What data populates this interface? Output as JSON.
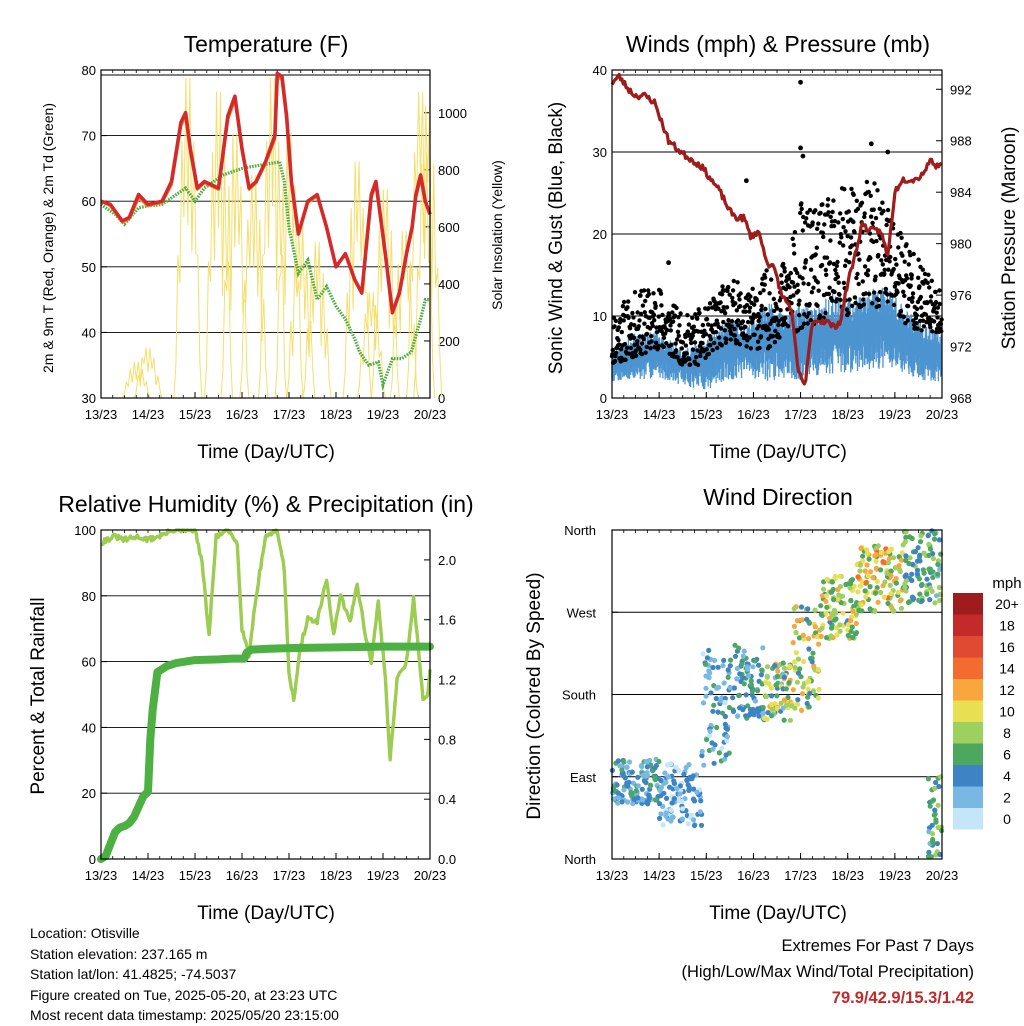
{
  "panels": {
    "temperature": {
      "title": "Temperature (F)",
      "xlabel": "Time (Day/UTC)",
      "ylabel_left": "2m & 9m T (Red, Orange) & 2m Td (Green)",
      "ylabel_right": "Solar Insolation (Yellow)"
    },
    "winds": {
      "title": "Winds (mph) & Pressure (mb)",
      "xlabel": "Time (Day/UTC)",
      "ylabel_left": "Sonic Wind & Gust (Blue, Black)",
      "ylabel_right": "Station Pressure (Maroon)"
    },
    "humidity": {
      "title": "Relative Humidity (%) & Precipitation (in)",
      "xlabel": "Time (Day/UTC)",
      "ylabel_left": "Percent & Total Rainfall",
      "ylabel_right": ""
    },
    "direction": {
      "title": "Wind Direction",
      "xlabel": "Time (Day/UTC)",
      "ylabel_left": "Direction (Colored By Speed)",
      "colorbar_unit": "mph"
    }
  },
  "info": {
    "location": "Location: Otisville",
    "elevation": "Station elevation: 237.165 m",
    "latlon": "Station lat/lon: 41.4825; -74.5037",
    "created": "Figure created on Tue, 2025-05-20, at 23:23 UTC",
    "recent": "Most recent data timestamp: 2025/05/20 23:15:00"
  },
  "extremes": {
    "title": "Extremes For Past 7 Days",
    "subtitle": "(High/Low/Max Wind/Total Precipitation)",
    "values": "79.9/42.9/15.3/1.42"
  },
  "colors": {
    "temp": "#d42a2a",
    "temp9m": "#f08a30",
    "dewpoint": "#4cad3f",
    "solar": "#f5df6c",
    "wind": "#4c94d0",
    "gust": "#000000",
    "pressure": "#9e1c1c",
    "rh": "#9ccc50",
    "rain": "#4cb043"
  },
  "chart_data": [
    {
      "type": "line",
      "title": "Temperature (F)",
      "xlabel": "Time (Day/UTC)",
      "ylabel": "2m & 9m T (Red, Orange) & 2m Td (Green)",
      "y2label": "Solar Insolation (Yellow)",
      "x_ticks": [
        "13/23",
        "14/23",
        "15/23",
        "16/23",
        "17/23",
        "18/23",
        "19/23",
        "20/23"
      ],
      "ylim": [
        30,
        80
      ],
      "yticks": [
        30,
        40,
        50,
        60,
        70,
        80
      ],
      "y2lim": [
        0,
        1150
      ],
      "y2ticks": [
        0,
        200,
        400,
        600,
        800,
        1000
      ],
      "series": [
        {
          "name": "2m T",
          "axis": "left",
          "color": "#d42a2a",
          "x": [
            0,
            0.2,
            0.45,
            0.6,
            0.8,
            1.0,
            1.3,
            1.5,
            1.7,
            1.8,
            1.9,
            2.05,
            2.2,
            2.5,
            2.7,
            2.85,
            3.0,
            3.15,
            3.3,
            3.5,
            3.7,
            3.75,
            3.85,
            3.95,
            4.05,
            4.2,
            4.4,
            4.6,
            4.8,
            5.0,
            5.2,
            5.4,
            5.55,
            5.75,
            5.85,
            6.05,
            6.2,
            6.35,
            6.5,
            6.62,
            6.7,
            6.8,
            6.9,
            7.0
          ],
          "y": [
            60,
            59.5,
            57,
            57.5,
            61,
            59.5,
            60,
            63,
            72,
            73.5,
            68,
            62,
            63,
            62,
            73,
            76,
            68,
            62,
            63,
            66,
            70,
            79.5,
            79,
            73,
            63,
            55,
            60,
            61,
            56,
            50,
            52,
            48,
            46,
            61,
            63,
            52,
            43,
            46,
            52,
            56,
            61,
            64,
            60,
            58
          ]
        },
        {
          "name": "9m T",
          "axis": "left",
          "color": "#f08a30",
          "x": [
            0,
            0.2,
            0.45,
            0.6,
            0.8,
            1.0,
            1.3,
            1.5,
            1.7,
            1.8,
            1.9,
            2.05,
            2.2,
            2.5,
            2.7,
            2.85,
            3.0,
            3.15,
            3.3,
            3.5,
            3.7,
            3.75,
            3.85,
            3.95,
            4.05,
            4.2,
            4.4,
            4.6,
            4.8,
            5.0,
            5.2,
            5.4,
            5.55,
            5.75,
            5.85,
            6.05,
            6.2,
            6.35,
            6.5,
            6.62,
            6.7,
            6.8,
            6.9,
            7.0
          ],
          "y": [
            60,
            59.3,
            56.8,
            57.3,
            60.5,
            59.3,
            59.8,
            62.5,
            71.5,
            73,
            67.5,
            61.8,
            62.8,
            61.8,
            72.5,
            75.5,
            67.8,
            61.8,
            62.8,
            65.8,
            69.5,
            79,
            78.5,
            72.5,
            62.8,
            55,
            59.8,
            60.8,
            56,
            50,
            52,
            48,
            46,
            60.5,
            62.5,
            52,
            43.2,
            46,
            52,
            56,
            60.5,
            63.5,
            60,
            58
          ]
        },
        {
          "name": "2m Td",
          "axis": "left",
          "color": "#4cad3f",
          "x": [
            0,
            0.3,
            0.5,
            0.8,
            1.0,
            1.3,
            1.6,
            1.8,
            2.0,
            2.2,
            2.6,
            3.0,
            3.4,
            3.8,
            3.9,
            4.0,
            4.2,
            4.4,
            4.6,
            4.8,
            5.0,
            5.2,
            5.4,
            5.5,
            5.7,
            5.9,
            6.0,
            6.2,
            6.4,
            6.6,
            6.8,
            6.9,
            7.0
          ],
          "y": [
            59.5,
            58,
            56.5,
            59,
            59.3,
            59.5,
            61,
            62,
            60,
            62,
            64,
            65,
            65.5,
            66,
            63,
            56,
            49,
            51,
            45,
            47,
            44,
            42,
            39,
            37,
            35,
            35.5,
            32,
            36,
            36,
            37,
            42,
            45,
            45
          ]
        },
        {
          "name": "Solar Insolation",
          "axis": "right",
          "color": "#f5df6c",
          "type": "diurnal",
          "peaks": [
            [
              0.75,
              130
            ],
            [
              1.0,
              180
            ],
            [
              1.85,
              1150
            ],
            [
              2.5,
              1100
            ],
            [
              2.85,
              950
            ],
            [
              3.25,
              800
            ],
            [
              3.65,
              1150
            ],
            [
              4.0,
              950
            ],
            [
              4.25,
              620
            ],
            [
              4.6,
              560
            ],
            [
              5.45,
              850
            ],
            [
              5.75,
              380
            ],
            [
              6.05,
              750
            ],
            [
              6.45,
              600
            ],
            [
              6.8,
              1100
            ],
            [
              6.95,
              1050
            ]
          ]
        }
      ]
    },
    {
      "type": "scatter",
      "title": "Winds (mph) & Pressure (mb)",
      "xlabel": "Time (Day/UTC)",
      "ylabel": "Sonic Wind & Gust (Blue, Black)",
      "y2label": "Station Pressure (Maroon)",
      "x_ticks": [
        "13/23",
        "14/23",
        "15/23",
        "16/23",
        "17/23",
        "18/23",
        "19/23",
        "20/23"
      ],
      "ylim": [
        0,
        40
      ],
      "yticks": [
        0,
        10,
        20,
        30,
        40
      ],
      "y2lim": [
        968,
        993.5
      ],
      "y2ticks": [
        968,
        972,
        976,
        980,
        984,
        988,
        992
      ],
      "series": [
        {
          "name": "Sonic Wind",
          "axis": "left",
          "color": "#4c94d0",
          "type": "band",
          "x": [
            0,
            0.5,
            1.0,
            1.5,
            1.9,
            2.0,
            2.5,
            2.9,
            3.3,
            3.7,
            4.0,
            4.3,
            4.7,
            5.0,
            5.4,
            5.8,
            6.2,
            6.6,
            7.0
          ],
          "low": [
            2,
            2,
            2.5,
            1.5,
            1,
            1,
            2,
            2.5,
            2,
            2.5,
            2,
            2.5,
            3,
            3,
            3.5,
            3.5,
            3,
            2,
            2
          ],
          "high": [
            6,
            8,
            8,
            6,
            7,
            7,
            10,
            9,
            12,
            10,
            12,
            11,
            13,
            12,
            13,
            14,
            11,
            9,
            8
          ]
        },
        {
          "name": "Gust",
          "axis": "left",
          "color": "#000000",
          "type": "scatter-cloud",
          "x": [
            0,
            0.5,
            1.0,
            1.5,
            1.9,
            2.0,
            2.5,
            2.9,
            3.3,
            3.7,
            4.0,
            4.3,
            4.7,
            5.0,
            5.4,
            5.8,
            6.2,
            6.6,
            7.0
          ],
          "low": [
            4,
            5,
            6,
            4,
            4,
            5,
            7,
            6,
            6,
            8,
            8,
            9,
            10,
            10,
            11,
            11,
            9,
            8,
            8
          ],
          "high": [
            11,
            13,
            14,
            10,
            11,
            11,
            15,
            13,
            16,
            17,
            24,
            23,
            25,
            26,
            27,
            25,
            21,
            16,
            13
          ],
          "outliers": [
            [
              2.85,
              26.5
            ],
            [
              4.0,
              38.5
            ],
            [
              4.0,
              30.5
            ],
            [
              4.05,
              29.5
            ],
            [
              5.5,
              31
            ],
            [
              5.85,
              30
            ],
            [
              1.2,
              16.5
            ],
            [
              0.6,
              12.5
            ]
          ]
        },
        {
          "name": "Station Pressure",
          "axis": "right",
          "color": "#9e1c1c",
          "x": [
            0,
            0.15,
            0.35,
            0.5,
            0.7,
            0.9,
            1.05,
            1.2,
            1.35,
            1.5,
            1.7,
            1.9,
            2.1,
            2.3,
            2.5,
            2.65,
            2.8,
            2.95,
            3.1,
            3.3,
            3.45,
            3.6,
            3.8,
            3.95,
            4.1,
            4.25,
            4.4,
            4.55,
            4.7,
            4.85,
            5.0,
            5.15,
            5.3,
            5.5,
            5.7,
            5.85,
            6.0,
            6.15,
            6.3,
            6.45,
            6.6,
            6.75,
            6.9,
            7.0
          ],
          "y": [
            992.5,
            993,
            992,
            991.5,
            991.5,
            991,
            989.5,
            988,
            987.5,
            987,
            986.5,
            986,
            985,
            984,
            982.5,
            982,
            982,
            980.5,
            981,
            978.5,
            978,
            976,
            975,
            970,
            969,
            974,
            974,
            974,
            973.5,
            974,
            977,
            979,
            981.5,
            981,
            981,
            979,
            984,
            985,
            985,
            985,
            985.5,
            986.5,
            986,
            986.5
          ]
        }
      ]
    },
    {
      "type": "line",
      "title": "Relative Humidity (%) & Precipitation (in)",
      "xlabel": "Time (Day/UTC)",
      "ylabel": "Percent & Total Rainfall",
      "x_ticks": [
        "13/23",
        "14/23",
        "15/23",
        "16/23",
        "17/23",
        "18/23",
        "19/23",
        "20/23"
      ],
      "ylim": [
        0,
        100
      ],
      "yticks": [
        0,
        20,
        40,
        60,
        80,
        100
      ],
      "y2lim": [
        0,
        2.2
      ],
      "y2ticks": [
        0.0,
        0.4,
        0.8,
        1.2,
        1.6,
        2.0
      ],
      "series": [
        {
          "name": "Relative Humidity",
          "axis": "left",
          "color": "#9ccc50",
          "x": [
            0,
            0.1,
            0.3,
            0.5,
            0.8,
            1.0,
            1.2,
            1.4,
            1.5,
            1.8,
            2.0,
            2.15,
            2.3,
            2.45,
            2.7,
            2.9,
            3.0,
            3.15,
            3.3,
            3.5,
            3.75,
            3.9,
            4.0,
            4.1,
            4.25,
            4.4,
            4.6,
            4.8,
            4.95,
            5.1,
            5.3,
            5.45,
            5.6,
            5.75,
            5.9,
            6.05,
            6.15,
            6.3,
            6.5,
            6.65,
            6.75,
            6.85,
            6.95,
            7.0
          ],
          "y": [
            96,
            97,
            98,
            97,
            98,
            97,
            98,
            99,
            100,
            100,
            100,
            90,
            68,
            98,
            100,
            96,
            70,
            62,
            80,
            98,
            100,
            88,
            57,
            48,
            65,
            73,
            72,
            85,
            68,
            80,
            72,
            84,
            70,
            60,
            78,
            55,
            30,
            55,
            60,
            79,
            65,
            48,
            50,
            57
          ]
        },
        {
          "name": "Total Rainfall",
          "axis": "right",
          "color": "#4cb043",
          "x": [
            0,
            0.1,
            0.2,
            0.3,
            0.4,
            0.5,
            0.6,
            0.7,
            0.8,
            0.9,
            1.0,
            1.05,
            1.1,
            1.2,
            1.4,
            1.6,
            2.0,
            2.5,
            2.8,
            3.05,
            3.1,
            3.2,
            3.5,
            4.0,
            5.0,
            6.0,
            7.0
          ],
          "y": [
            0.0,
            0.02,
            0.1,
            0.18,
            0.21,
            0.22,
            0.24,
            0.28,
            0.35,
            0.42,
            0.45,
            0.8,
            1.0,
            1.25,
            1.29,
            1.31,
            1.33,
            1.335,
            1.34,
            1.34,
            1.38,
            1.4,
            1.405,
            1.41,
            1.415,
            1.42,
            1.42
          ]
        }
      ]
    },
    {
      "type": "scatter",
      "title": "Wind Direction",
      "xlabel": "Time (Day/UTC)",
      "ylabel": "Direction (Colored By Speed)",
      "x_ticks": [
        "13/23",
        "14/23",
        "15/23",
        "16/23",
        "17/23",
        "18/23",
        "19/23",
        "20/23"
      ],
      "y_ticks": [
        "North",
        "East",
        "South",
        "West",
        "North"
      ],
      "ylim": [
        0,
        360
      ],
      "colorbar": {
        "unit": "mph",
        "labels": [
          "20+",
          "18",
          "16",
          "14",
          "12",
          "10",
          "8",
          "6",
          "4",
          "2",
          "0"
        ],
        "colors": [
          "#9e1c1c",
          "#c42a2a",
          "#e04a33",
          "#f36b2e",
          "#f8a63d",
          "#e8df52",
          "#9ed060",
          "#4ca85e",
          "#3e83c4",
          "#7ab8e4",
          "#c5e6f8"
        ]
      },
      "clusters": [
        {
          "x0": 0.0,
          "x1": 1.0,
          "dmin": 60,
          "dmax": 110,
          "smin": 1,
          "smax": 6
        },
        {
          "x0": 1.0,
          "x1": 1.9,
          "dmin": 35,
          "dmax": 105,
          "smin": 0,
          "smax": 5
        },
        {
          "x0": 1.9,
          "x1": 2.5,
          "dmin": 100,
          "dmax": 230,
          "smin": 0,
          "smax": 6
        },
        {
          "x0": 2.5,
          "x1": 3.2,
          "dmin": 150,
          "dmax": 235,
          "smin": 2,
          "smax": 7
        },
        {
          "x0": 3.2,
          "x1": 3.8,
          "dmin": 150,
          "dmax": 215,
          "smin": 2,
          "smax": 12
        },
        {
          "x0": 3.8,
          "x1": 4.4,
          "dmin": 160,
          "dmax": 280,
          "smin": 3,
          "smax": 13
        },
        {
          "x0": 4.4,
          "x1": 5.2,
          "dmin": 240,
          "dmax": 310,
          "smin": 4,
          "smax": 12
        },
        {
          "x0": 5.2,
          "x1": 6.2,
          "dmin": 270,
          "dmax": 345,
          "smin": 5,
          "smax": 14
        },
        {
          "x0": 6.2,
          "x1": 6.7,
          "dmin": 280,
          "dmax": 360,
          "smin": 3,
          "smax": 9
        },
        {
          "x0": 6.7,
          "x1": 7.0,
          "dmin": 0,
          "dmax": 90,
          "smin": 2,
          "smax": 8
        },
        {
          "x0": 6.7,
          "x1": 7.0,
          "dmin": 280,
          "dmax": 360,
          "smin": 2,
          "smax": 8
        }
      ]
    }
  ]
}
